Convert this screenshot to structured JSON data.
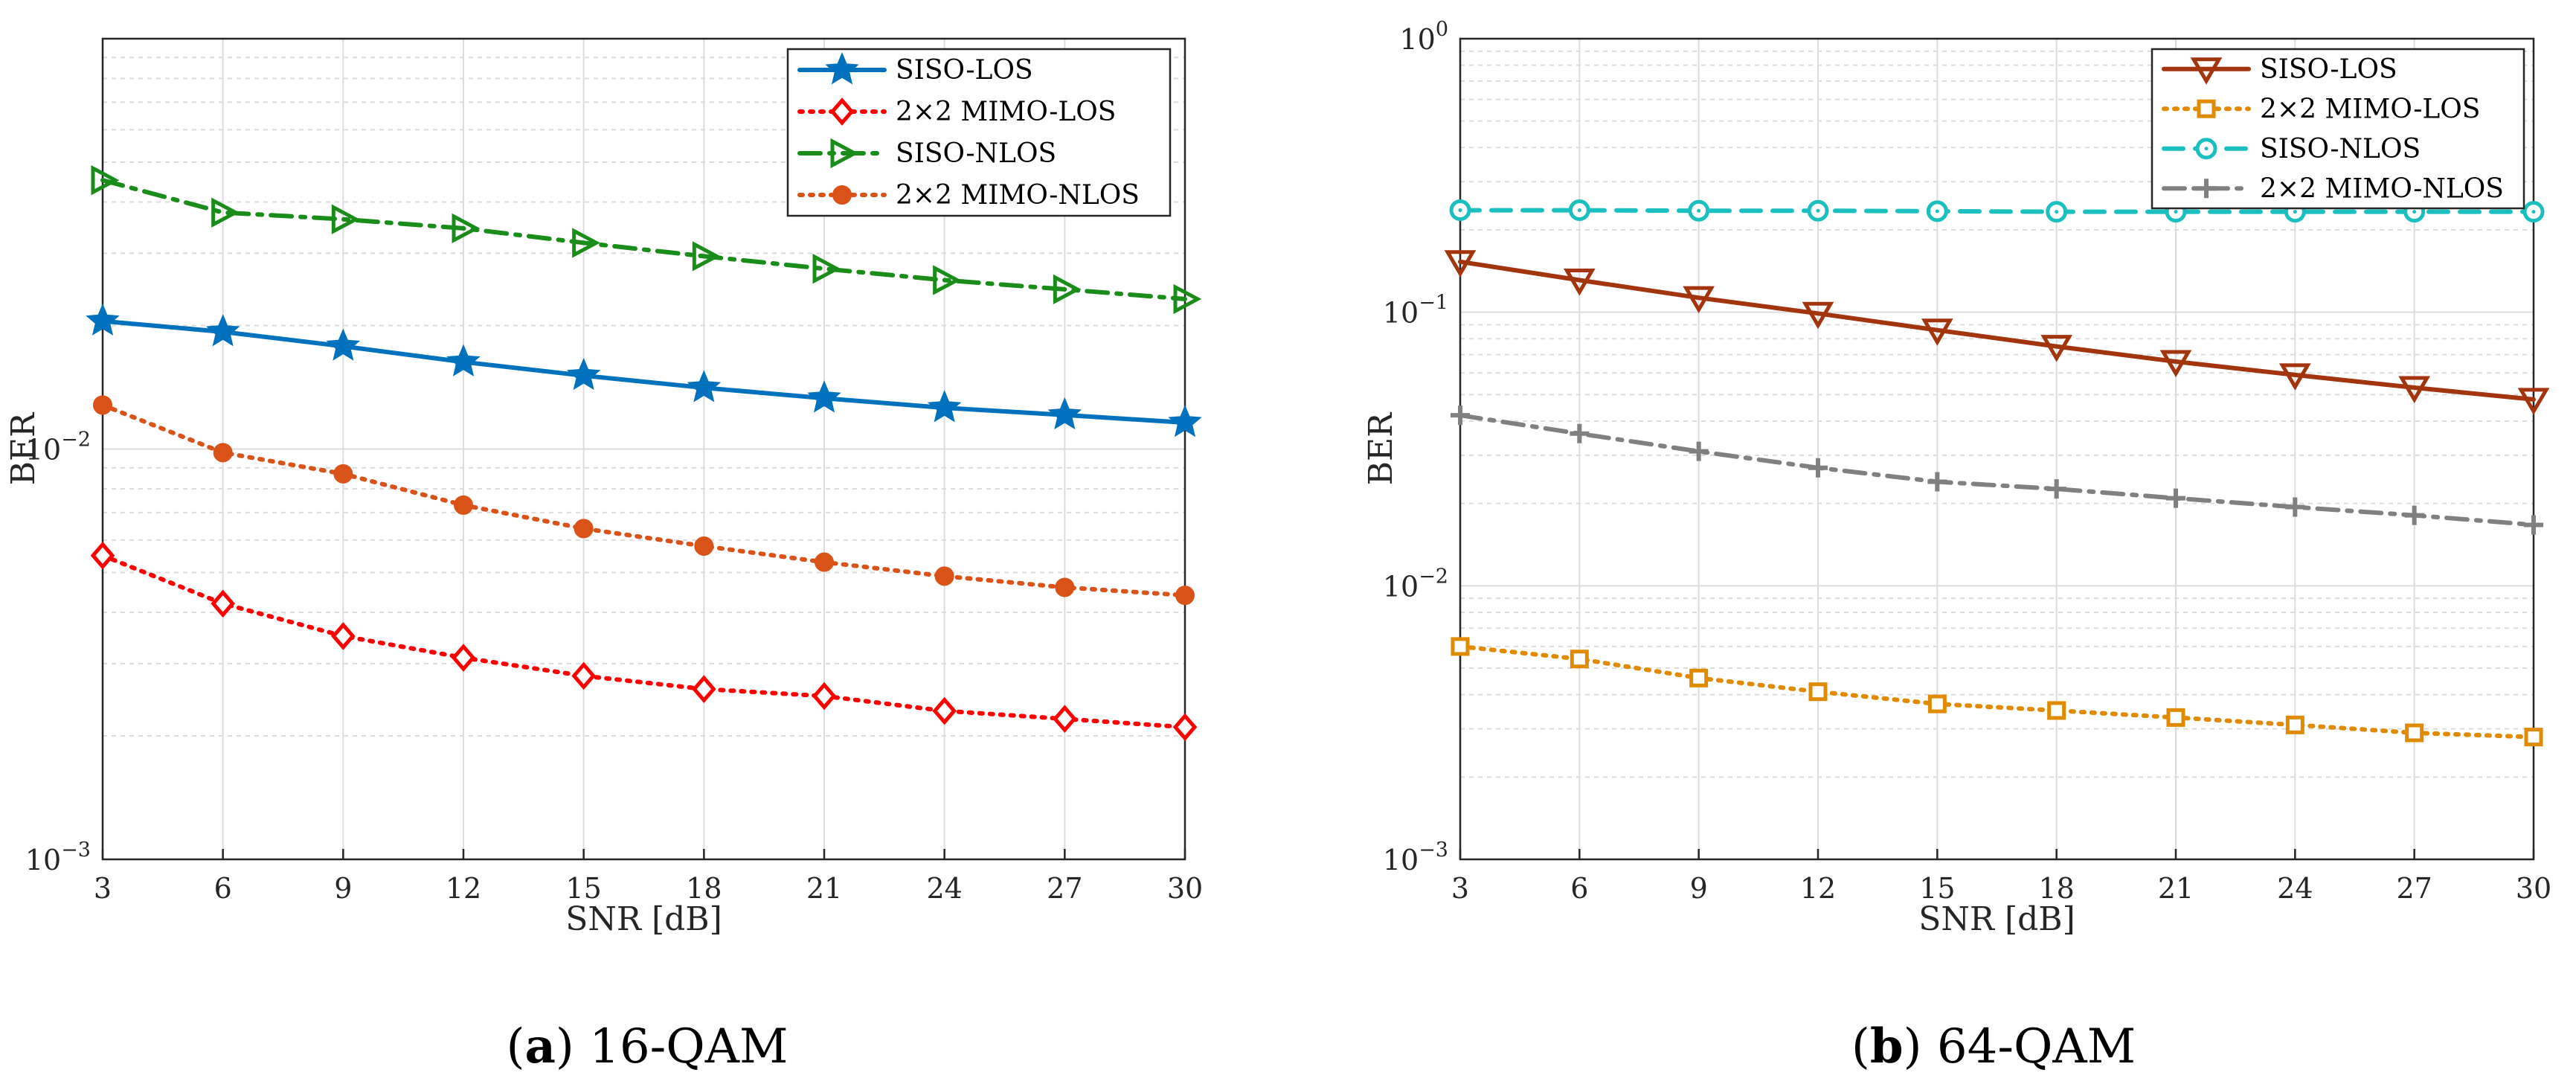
{
  "chart_data": [
    {
      "type": "line",
      "caption_letter": "a",
      "caption_text": "16-QAM",
      "xlabel": "SNR [dB]",
      "ylabel": "BER",
      "x": [
        3,
        6,
        9,
        12,
        15,
        18,
        21,
        24,
        27,
        30
      ],
      "xlim": [
        3,
        30
      ],
      "ylim": [
        0.001,
        0.1
      ],
      "yscale": "log",
      "y_tick_labels": [
        {
          "value": 0.01,
          "base": "10",
          "exp": "−2"
        },
        {
          "value": 0.001,
          "base": "10",
          "exp": "−3"
        }
      ],
      "grid": true,
      "legend_position": "top-right",
      "series": [
        {
          "name": "SISO-LOS",
          "color": "#0072BD",
          "dash": "solid",
          "marker": "star",
          "values": [
            0.0205,
            0.0193,
            0.0178,
            0.0163,
            0.0151,
            0.0141,
            0.0133,
            0.0126,
            0.0121,
            0.0116
          ]
        },
        {
          "name": "2×2 MIMO-LOS",
          "color": "#FF0000",
          "dash": "dot",
          "marker": "diamond",
          "values": [
            0.0055,
            0.0042,
            0.0035,
            0.0031,
            0.0028,
            0.0026,
            0.0025,
            0.0023,
            0.0022,
            0.0021
          ]
        },
        {
          "name": "SISO-NLOS",
          "color": "#1A8C1A",
          "dash": "dashdot",
          "marker": "triangle-right",
          "values": [
            0.0452,
            0.0377,
            0.0363,
            0.0345,
            0.0318,
            0.0295,
            0.0275,
            0.0258,
            0.0245,
            0.0232
          ]
        },
        {
          "name": "2×2 MIMO-NLOS",
          "color": "#D95319",
          "dash": "dot",
          "marker": "circle",
          "values": [
            0.0128,
            0.0098,
            0.0087,
            0.0073,
            0.0064,
            0.0058,
            0.0053,
            0.0049,
            0.0046,
            0.0044
          ]
        }
      ]
    },
    {
      "type": "line",
      "caption_letter": "b",
      "caption_text": "64-QAM",
      "xlabel": "SNR [dB]",
      "ylabel": "BER",
      "x": [
        3,
        6,
        9,
        12,
        15,
        18,
        21,
        24,
        27,
        30
      ],
      "xlim": [
        3,
        30
      ],
      "ylim": [
        0.001,
        1
      ],
      "yscale": "log",
      "y_tick_labels": [
        {
          "value": 1,
          "base": "10",
          "exp": "0"
        },
        {
          "value": 0.1,
          "base": "10",
          "exp": "−1"
        },
        {
          "value": 0.01,
          "base": "10",
          "exp": "−2"
        },
        {
          "value": 0.001,
          "base": "10",
          "exp": "−3"
        }
      ],
      "grid": true,
      "legend_position": "top-right",
      "series": [
        {
          "name": "SISO-LOS",
          "color": "#A2340E",
          "dash": "solid",
          "marker": "triangle-down",
          "values": [
            0.153,
            0.131,
            0.113,
            0.099,
            0.086,
            0.075,
            0.066,
            0.059,
            0.053,
            0.048
          ]
        },
        {
          "name": "2×2 MIMO-LOS",
          "color": "#E08A00",
          "dash": "dot",
          "marker": "square",
          "values": [
            0.006,
            0.0054,
            0.0046,
            0.0041,
            0.0037,
            0.0035,
            0.0033,
            0.0031,
            0.0029,
            0.0028
          ]
        },
        {
          "name": "SISO-NLOS",
          "color": "#1BBFBF",
          "dash": "dash",
          "marker": "circle-dot",
          "values": [
            0.236,
            0.236,
            0.235,
            0.235,
            0.234,
            0.233,
            0.233,
            0.233,
            0.233,
            0.233
          ]
        },
        {
          "name": "2×2 MIMO-NLOS",
          "color": "#808080",
          "dash": "dashdot",
          "marker": "plus",
          "values": [
            0.042,
            0.036,
            0.031,
            0.027,
            0.024,
            0.0226,
            0.0209,
            0.0194,
            0.0181,
            0.0167
          ]
        }
      ]
    }
  ]
}
